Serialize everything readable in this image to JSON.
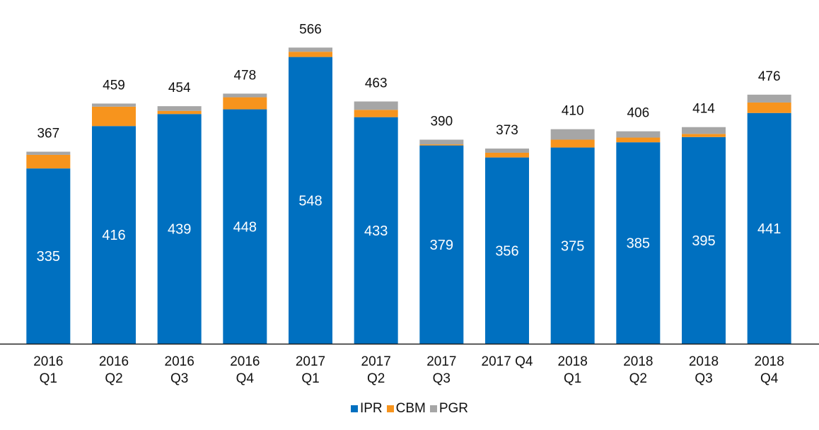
{
  "chart_data": {
    "type": "bar",
    "stacked": true,
    "categories": [
      [
        "2016",
        "Q1"
      ],
      [
        "2016",
        "Q2"
      ],
      [
        "2016",
        "Q3"
      ],
      [
        "2016",
        "Q4"
      ],
      [
        "2017",
        "Q1"
      ],
      [
        "2017",
        "Q2"
      ],
      [
        "2017",
        "Q3"
      ],
      [
        "2017 Q4"
      ],
      [
        "2018",
        "Q1"
      ],
      [
        "2018",
        "Q2"
      ],
      [
        "2018",
        "Q3"
      ],
      [
        "2018",
        "Q4"
      ]
    ],
    "series": [
      {
        "name": "IPR",
        "color": "#0070C0",
        "values": [
          335,
          416,
          439,
          448,
          548,
          433,
          379,
          356,
          375,
          385,
          395,
          441
        ]
      },
      {
        "name": "CBM",
        "color": "#F7941D",
        "values": [
          26,
          37,
          6,
          23,
          10,
          14,
          2,
          9,
          15,
          9,
          6,
          20
        ]
      },
      {
        "name": "PGR",
        "color": "#A6A6A6",
        "values": [
          6,
          6,
          9,
          7,
          8,
          16,
          9,
          8,
          20,
          12,
          13,
          15
        ]
      }
    ],
    "totals": [
      367,
      459,
      454,
      478,
      566,
      463,
      390,
      373,
      410,
      406,
      414,
      476
    ],
    "ylim": [
      0,
      600
    ],
    "grid": false,
    "legend_position": "bottom-center"
  }
}
